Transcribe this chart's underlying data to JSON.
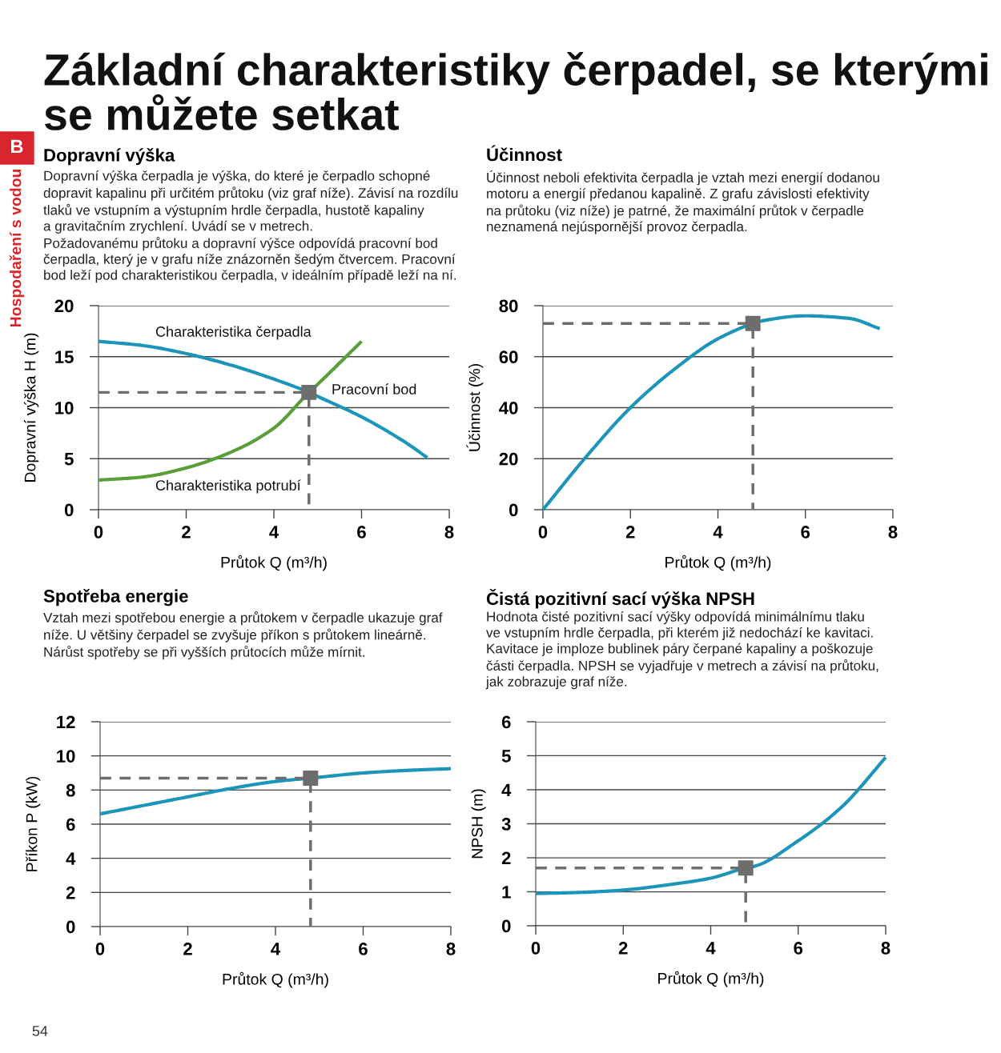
{
  "chart_data": [
    {
      "type": "line",
      "title": "Dopravní výška",
      "subtitle": "Dopravní výška čerpadla je výška, do které je čerpadlo schopné\ndopravit kapalinu při určitém průtoku (viz graf níže). Závisí na rozdílu\ntlaků ve vstupním a výstupním hrdle čerpadla, hustotě kapaliny\na gravitačním zrychlení. Uvádí se v metrech.\nPožadovanému průtoku a dopravní výšce odpovídá pracovní bod\nčerpadla, který je v grafu níže znázorněn šedým čtvercem. Pracovní\nbod leží pod charakteristikou čerpadla, v ideálním případě leží na ní.",
      "xlabel": "Průtok Q (m³/h)",
      "ylabel": "Dopravní výška H (m)",
      "xlim": [
        0,
        8
      ],
      "ylim": [
        0,
        20
      ],
      "xticks": [
        0,
        2,
        4,
        6,
        8
      ],
      "yticks": [
        0,
        5,
        10,
        15,
        20
      ],
      "grid": "y",
      "series": [
        {
          "color": "#1d95b8",
          "x": [
            0,
            1,
            2,
            3,
            4,
            4.8,
            5,
            6,
            7,
            7.5
          ],
          "values": [
            16.5,
            16.1,
            15.3,
            14.2,
            12.8,
            11.5,
            11.1,
            9.1,
            6.6,
            5.1
          ]
        },
        {
          "color": "#5a9e3a",
          "x": [
            0,
            1,
            2,
            3,
            4,
            4.8,
            5,
            6
          ],
          "values": [
            2.9,
            3.2,
            4.1,
            5.6,
            8.0,
            11.5,
            12.3,
            16.5
          ]
        },
        {
          "type": "line",
          "line_style": "dashed",
          "color": "#6d6d6d",
          "x": [
            0,
            4.8,
            4.8
          ],
          "values": [
            11.5,
            11.5,
            0
          ]
        },
        {
          "type": "scatter",
          "marker": "square",
          "color": "#6d6d6d",
          "x": [
            4.8
          ],
          "values": [
            11.5
          ]
        }
      ],
      "annotations": [
        "Základní charakteristiky čerpadel, se kterými\nse můžete setkat",
        "B",
        "Hospodaření s vodou",
        "54",
        "Charakteristika čerpadla",
        "Pracovní bod",
        "Charakteristika potrubí"
      ]
    },
    {
      "type": "line",
      "title": "Účinnost",
      "subtitle": "Účinnost neboli efektivita čerpadla je vztah mezi energií dodanou\nmotoru a energií předanou kapalině. Z grafu závislosti efektivity\nna průtoku (viz níže) je patrné, že maximální průtok v čerpadle\nneznamená nejúspornější provoz čerpadla.",
      "xlabel": "Průtok Q (m³/h)",
      "ylabel": "Účinnost (%)",
      "xlim": [
        0,
        8
      ],
      "ylim": [
        0,
        80
      ],
      "xticks": [
        0,
        2,
        4,
        6,
        8
      ],
      "yticks": [
        0,
        20,
        40,
        60,
        80
      ],
      "grid": "y",
      "series": [
        {
          "color": "#1d95b8",
          "x": [
            0,
            1,
            2,
            3,
            4,
            4.8,
            5,
            6,
            7,
            7.7
          ],
          "values": [
            0,
            21,
            40,
            55,
            67,
            73,
            74,
            76,
            75,
            71
          ]
        },
        {
          "type": "line",
          "line_style": "dashed",
          "color": "#6d6d6d",
          "x": [
            0,
            4.8,
            4.8
          ],
          "values": [
            73,
            73,
            0
          ]
        },
        {
          "type": "scatter",
          "marker": "square",
          "color": "#6d6d6d",
          "x": [
            4.8
          ],
          "values": [
            73
          ]
        }
      ]
    },
    {
      "type": "line",
      "title": "Spotřeba energie",
      "subtitle": "Vztah mezi spotřebou energie a průtokem v čerpadle ukazuje graf\nníže. U většiny čerpadel se zvyšuje příkon s průtokem lineárně.\nNárůst spotřeby se při vyšších průtocích může mírnit.",
      "xlabel": "Průtok Q (m³/h)",
      "ylabel": "Příkon P (kW)",
      "xlim": [
        0,
        8
      ],
      "ylim": [
        0,
        12
      ],
      "xticks": [
        0,
        2,
        4,
        6,
        8
      ],
      "yticks": [
        0,
        2,
        4,
        6,
        8,
        10,
        12
      ],
      "grid": "y",
      "series": [
        {
          "color": "#1d95b8",
          "x": [
            0,
            1,
            2,
            3,
            4,
            4.8,
            5,
            6,
            7,
            8
          ],
          "values": [
            6.6,
            7.1,
            7.6,
            8.1,
            8.5,
            8.7,
            8.75,
            9.0,
            9.15,
            9.25
          ]
        },
        {
          "type": "line",
          "line_style": "dashed",
          "color": "#6d6d6d",
          "x": [
            0,
            4.8,
            4.8
          ],
          "values": [
            8.7,
            8.7,
            0
          ]
        },
        {
          "type": "scatter",
          "marker": "square",
          "color": "#6d6d6d",
          "x": [
            4.8
          ],
          "values": [
            8.7
          ]
        }
      ]
    },
    {
      "type": "line",
      "title": "Čistá pozitivní sací výška NPSH",
      "subtitle": "Hodnota čisté pozitivní sací výšky odpovídá minimálnímu tlaku\nve vstupním hrdle čerpadla, při kterém již nedochází ke kavitaci.\nKavitace je imploze bublinek páry čerpané kapaliny a poškozuje\nčásti čerpadla. NPSH se vyjadřuje v metrech a závisí na průtoku,\njak zobrazuje graf níže.",
      "xlabel": "Průtok Q (m³/h)",
      "ylabel": "NPSH (m)",
      "xlim": [
        0,
        8
      ],
      "ylim": [
        0,
        6
      ],
      "xticks": [
        0,
        2,
        4,
        6,
        8
      ],
      "yticks": [
        0,
        1,
        2,
        3,
        4,
        5,
        6
      ],
      "grid": "y",
      "series": [
        {
          "color": "#1d95b8",
          "x": [
            0,
            1,
            2,
            3,
            4,
            4.8,
            5,
            6,
            7,
            8
          ],
          "values": [
            0.95,
            0.98,
            1.05,
            1.2,
            1.4,
            1.7,
            1.75,
            2.5,
            3.5,
            4.95
          ]
        },
        {
          "type": "line",
          "line_style": "dashed",
          "color": "#6d6d6d",
          "x": [
            0,
            4.8,
            4.8
          ],
          "values": [
            1.7,
            1.7,
            0
          ]
        },
        {
          "type": "scatter",
          "marker": "square",
          "color": "#6d6d6d",
          "x": [
            4.8
          ],
          "values": [
            1.7
          ]
        }
      ]
    }
  ]
}
